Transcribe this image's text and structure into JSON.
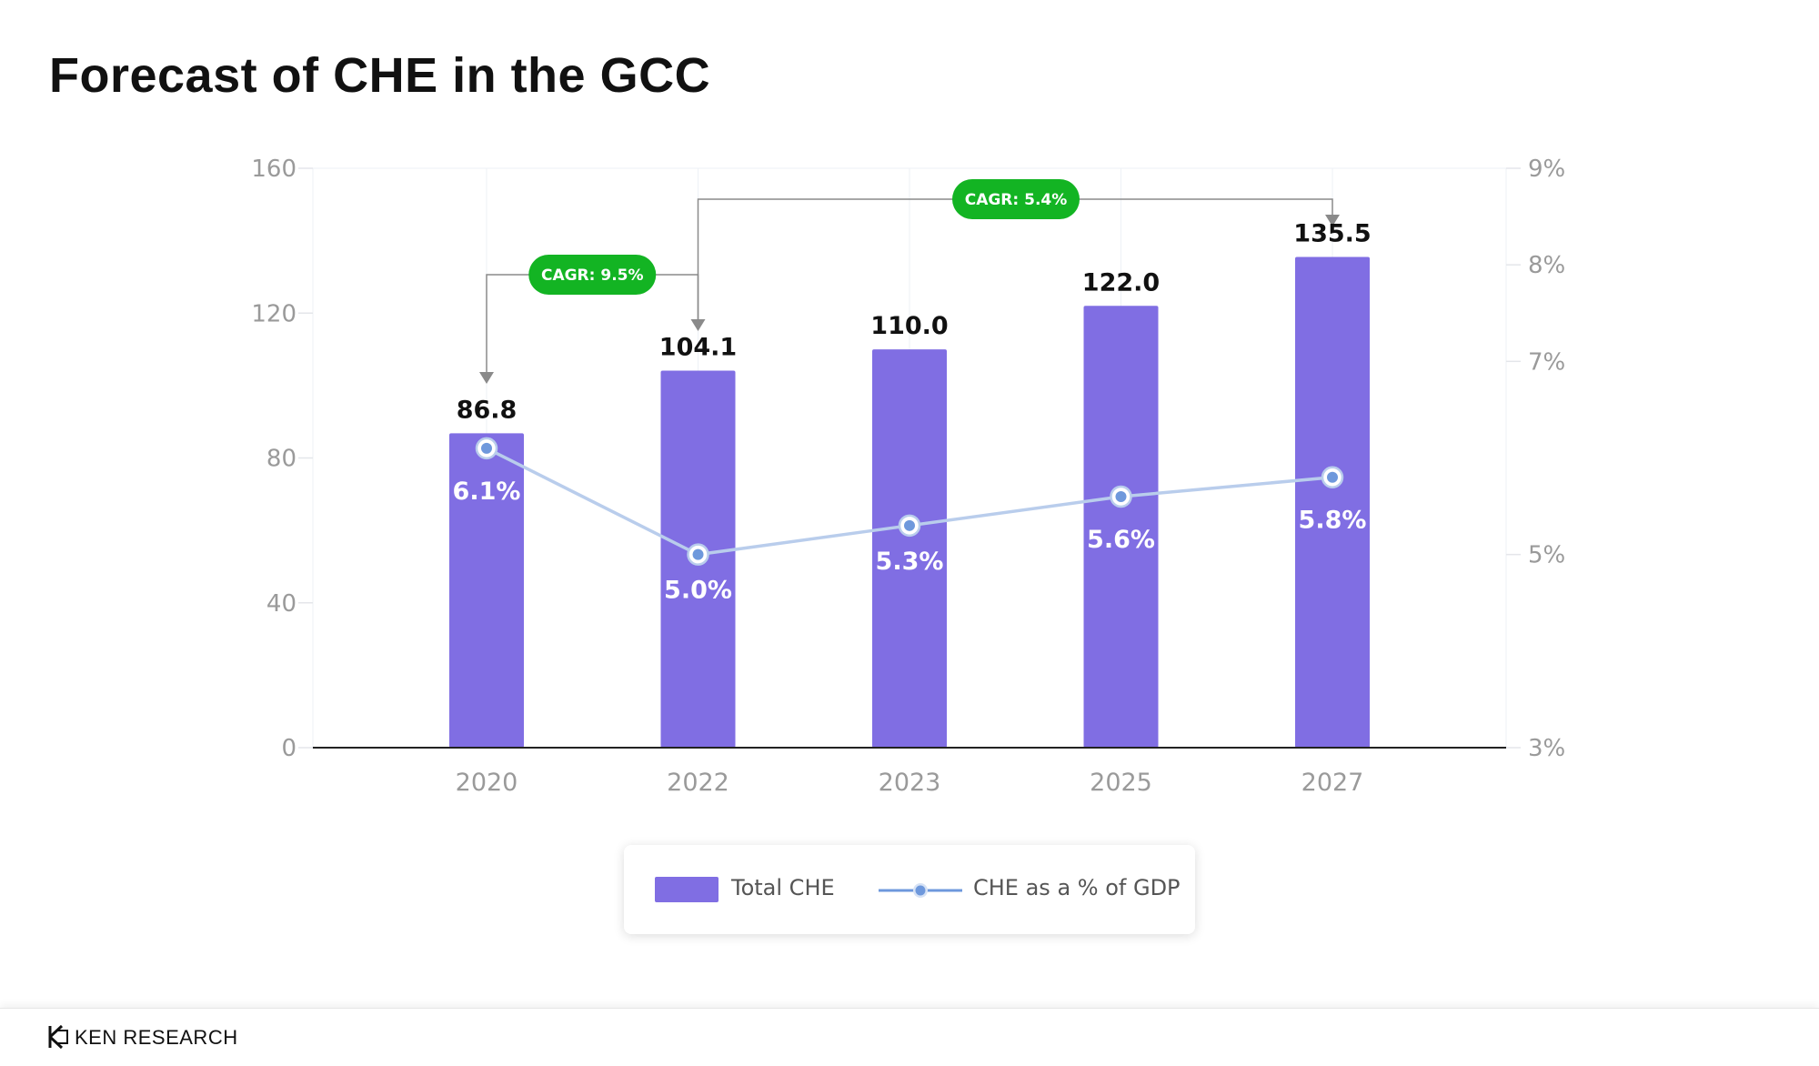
{
  "page": {
    "title": "Forecast of CHE in the GCC"
  },
  "chart_data": {
    "type": "bar",
    "categories": [
      "2020",
      "2022",
      "2023",
      "2025",
      "2027"
    ],
    "series": [
      {
        "name": "Total CHE",
        "type": "bar",
        "axis": "left",
        "values": [
          86.8,
          104.1,
          110.0,
          122.0,
          135.5
        ],
        "labels": [
          "86.8",
          "104.1",
          "110.0",
          "122.0",
          "135.5"
        ],
        "color": "#806ee3"
      },
      {
        "name": "CHE as a % of GDP",
        "type": "line",
        "axis": "right",
        "values": [
          6.1,
          5.0,
          5.3,
          5.6,
          5.8
        ],
        "labels": [
          "6.1%",
          "5.0%",
          "5.3%",
          "5.6%",
          "5.8%"
        ],
        "color": "#b9cdec",
        "marker_color": "#6e98dc"
      }
    ],
    "y_left": {
      "min": 0,
      "max": 160,
      "ticks": [
        "0",
        "40",
        "80",
        "120",
        "160"
      ]
    },
    "y_right": {
      "min": 3,
      "max": 9,
      "ticks": [
        "3%",
        "5%",
        "7%",
        "8%",
        "9%"
      ]
    },
    "annotations": [
      {
        "text": "CAGR: 9.5%",
        "from": "2020",
        "to": "2022",
        "color": "#13b423"
      },
      {
        "text": "CAGR: 5.4%",
        "from": "2022",
        "to": "2027",
        "color": "#13b423"
      }
    ],
    "legend_position": "bottom-center",
    "grid": true
  },
  "legend": {
    "items": [
      "Total CHE",
      "CHE as a % of GDP"
    ]
  },
  "footer": {
    "brand": "KEN RESEARCH"
  }
}
